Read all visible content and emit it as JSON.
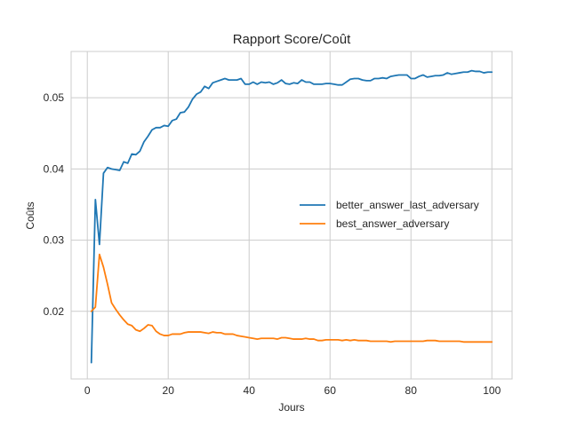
{
  "chart_data": {
    "type": "line",
    "title": "Rapport Score/Coût",
    "xlabel": "Jours",
    "ylabel": "Coûts",
    "xlim": [
      -4,
      105
    ],
    "ylim": [
      0.0105,
      0.0565
    ],
    "xticks": [
      0,
      20,
      40,
      60,
      80,
      100
    ],
    "yticks": [
      0.02,
      0.03,
      0.04,
      0.05
    ],
    "xtick_labels": [
      "0",
      "20",
      "40",
      "60",
      "80",
      "100"
    ],
    "ytick_labels": [
      "0.02",
      "0.03",
      "0.04",
      "0.05"
    ],
    "grid": true,
    "legend_position": "center-right",
    "x": [
      1,
      2,
      3,
      4,
      5,
      6,
      7,
      8,
      9,
      10,
      11,
      12,
      13,
      14,
      15,
      16,
      17,
      18,
      19,
      20,
      21,
      22,
      23,
      24,
      25,
      26,
      27,
      28,
      29,
      30,
      31,
      32,
      33,
      34,
      35,
      36,
      37,
      38,
      39,
      40,
      41,
      42,
      43,
      44,
      45,
      46,
      47,
      48,
      49,
      50,
      51,
      52,
      53,
      54,
      55,
      56,
      57,
      58,
      59,
      60,
      61,
      62,
      63,
      64,
      65,
      66,
      67,
      68,
      69,
      70,
      71,
      72,
      73,
      74,
      75,
      76,
      77,
      78,
      79,
      80,
      81,
      82,
      83,
      84,
      85,
      86,
      87,
      88,
      89,
      90,
      91,
      92,
      93,
      94,
      95,
      96,
      97,
      98,
      99,
      100
    ],
    "series": [
      {
        "name": "better_answer_last_adversary",
        "color": "#1f77b4",
        "values": [
          0.0128,
          0.0357,
          0.0294,
          0.0394,
          0.0402,
          0.04,
          0.0399,
          0.0398,
          0.041,
          0.0408,
          0.0421,
          0.042,
          0.0425,
          0.0438,
          0.0446,
          0.0455,
          0.0458,
          0.0458,
          0.0461,
          0.046,
          0.0468,
          0.047,
          0.0479,
          0.048,
          0.0487,
          0.0498,
          0.0505,
          0.0508,
          0.0516,
          0.0513,
          0.0521,
          0.0523,
          0.0525,
          0.0527,
          0.0525,
          0.0525,
          0.0525,
          0.0527,
          0.0519,
          0.0519,
          0.0522,
          0.0519,
          0.0522,
          0.0521,
          0.0522,
          0.0519,
          0.0521,
          0.0525,
          0.052,
          0.0519,
          0.0521,
          0.052,
          0.0525,
          0.0522,
          0.0522,
          0.0519,
          0.0519,
          0.0519,
          0.052,
          0.052,
          0.0519,
          0.0518,
          0.0518,
          0.0522,
          0.0526,
          0.0527,
          0.0527,
          0.0525,
          0.0524,
          0.0524,
          0.0527,
          0.0527,
          0.0528,
          0.0527,
          0.053,
          0.0531,
          0.0532,
          0.0532,
          0.0532,
          0.0527,
          0.0527,
          0.053,
          0.0532,
          0.0529,
          0.053,
          0.0531,
          0.0531,
          0.0532,
          0.0535,
          0.0533,
          0.0534,
          0.0535,
          0.0536,
          0.0536,
          0.0538,
          0.0537,
          0.0537,
          0.0535,
          0.0536,
          0.0536
        ]
      },
      {
        "name": "best_answer_adversary",
        "color": "#ff7f0e",
        "values": [
          0.02,
          0.0206,
          0.028,
          0.0262,
          0.0238,
          0.0212,
          0.0203,
          0.0195,
          0.0188,
          0.0182,
          0.018,
          0.0174,
          0.0172,
          0.0176,
          0.0181,
          0.018,
          0.0172,
          0.0168,
          0.0166,
          0.0166,
          0.0168,
          0.0168,
          0.0168,
          0.017,
          0.0171,
          0.0171,
          0.0171,
          0.0171,
          0.017,
          0.0169,
          0.0171,
          0.017,
          0.017,
          0.0168,
          0.0168,
          0.0168,
          0.0166,
          0.0165,
          0.0164,
          0.0163,
          0.0162,
          0.0161,
          0.0162,
          0.0162,
          0.0162,
          0.0162,
          0.0161,
          0.0163,
          0.0163,
          0.0162,
          0.0161,
          0.0161,
          0.0161,
          0.0162,
          0.0161,
          0.0161,
          0.0159,
          0.0159,
          0.016,
          0.016,
          0.016,
          0.016,
          0.0159,
          0.016,
          0.0159,
          0.016,
          0.0159,
          0.0159,
          0.0159,
          0.0158,
          0.0158,
          0.0158,
          0.0158,
          0.0158,
          0.0157,
          0.0158,
          0.0158,
          0.0158,
          0.0158,
          0.0158,
          0.0158,
          0.0158,
          0.0158,
          0.0159,
          0.0159,
          0.0159,
          0.0158,
          0.0158,
          0.0158,
          0.0158,
          0.0158,
          0.0158,
          0.0157,
          0.0157,
          0.0157,
          0.0157,
          0.0157,
          0.0157,
          0.0157,
          0.0157
        ]
      }
    ]
  }
}
